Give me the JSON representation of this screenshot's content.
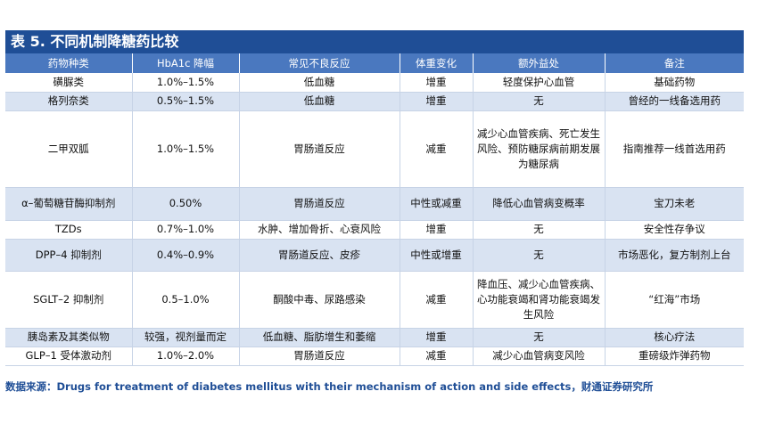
{
  "title": "表 5. 不同机制降糖药比较",
  "headers": [
    "药物种类",
    "HbA1c 降幅",
    "常见不良反应",
    "体重变化",
    "额外益处",
    "备注"
  ],
  "rows": [
    [
      "磺脲类",
      "1.0%–1.5%",
      "低血糖",
      "增重",
      "轻度保护心血管",
      "基础药物"
    ],
    [
      "格列奈类",
      "0.5%–1.5%",
      "低血糖",
      "增重",
      "无",
      "曾经的一线备选用药"
    ],
    [
      "二甲双胍",
      "1.0%–1.5%",
      "胃肠道反应",
      "减重",
      "减少心血管疾病、死亡发生风险、预防糖尿病前期发展为糖尿病",
      "指南推荐一线首选用药"
    ],
    [
      "α–葡萄糖苷酶抑制剂",
      "0.50%",
      "胃肠道反应",
      "中性或减重",
      "降低心血管病变概率",
      "宝刀未老"
    ],
    [
      "TZDs",
      "0.7%–1.0%",
      "水肿、增加骨折、心衰风险",
      "增重",
      "无",
      "安全性存争议"
    ],
    [
      "DPP–4 抑制剂",
      "0.4%–0.9%",
      "胃肠道反应、皮疹",
      "中性或增重",
      "无",
      "市场恶化，复方制剂上台"
    ],
    [
      "SGLT–2 抑制剂",
      "0.5–1.0%",
      "酮酸中毒、尿路感染",
      "减重",
      "降血压、减少心血管疾病、心功能衰竭和肾功能衰竭发生风险",
      "“红海”市场"
    ],
    [
      "胰岛素及其类似物",
      "较强，视剂量而定",
      "低血糖、脂肪增生和萎缩",
      "增重",
      "无",
      "核心疗法"
    ],
    [
      "GLP–1 受体激动剂",
      "1.0%–2.0%",
      "胃肠道反应",
      "减重",
      "减少心血管病变风险",
      "重磅级炸弹药物"
    ]
  ],
  "source": "数据来源：Drugs for treatment of diabetes mellitus with their mechanism of action and side effects，财通证券研究所",
  "colors": {
    "title_bg": "#1f4e96",
    "header_bg": "#4a78bf",
    "stripe": "#d9e3f2"
  }
}
